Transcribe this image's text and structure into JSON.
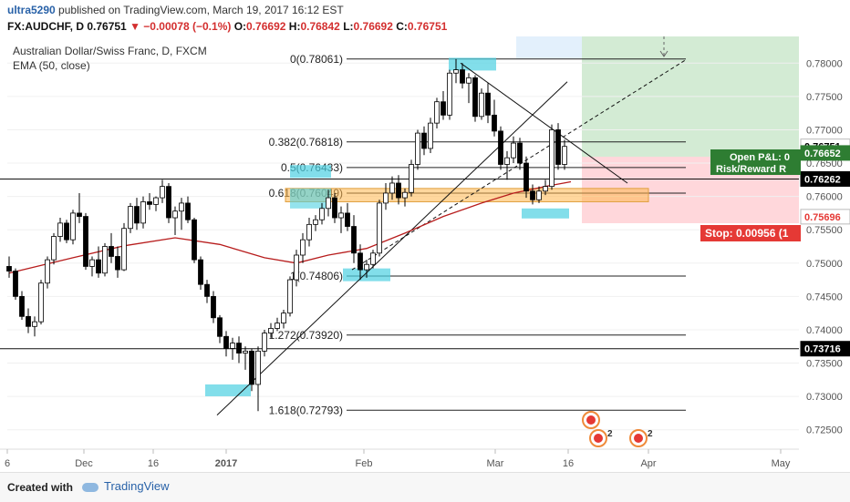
{
  "header": {
    "user": "ultra5290",
    "published_text": "published on TradingView.com, March 19, 2017 16:12 EST",
    "symbol": "FX:AUDCHF, D",
    "last": "0.76751",
    "change": "▼ −0.00078 (−0.1%)",
    "o_label": "O:",
    "o_value": "0.76692",
    "h_label": "H:",
    "h_value": "0.76842",
    "l_label": "L:",
    "l_value": "0.76692",
    "c_label": "C:",
    "c_value": "0.76751"
  },
  "footer": {
    "created": "Created with",
    "brand": "TradingView",
    "brand_icon": "tradingview-cloud-icon"
  },
  "colors": {
    "candle_up": "#ffffff",
    "candle_down": "#000000",
    "ema": "#b71c1c",
    "target_zone": "#c8e6c9",
    "stop_zone": "#ffcdd2",
    "highlight": "#4dd0e1",
    "zone": "#ffb74d",
    "axis_text": "#555555",
    "pnl_badge": "#2e7d32",
    "stop_badge": "#e53935"
  },
  "chart_data": {
    "type": "candlestick",
    "title": "Australian Dollar/Swiss Franc, D, FXCM",
    "indicator": "EMA (50, close)",
    "ylim": [
      0.7225,
      0.784
    ],
    "y_ticks": [
      "0.78000",
      "0.77500",
      "0.77000",
      "0.76500",
      "0.76000",
      "0.75500",
      "0.75000",
      "0.74500",
      "0.74000",
      "0.73500",
      "0.73000",
      "0.72500"
    ],
    "x_ticks": [
      "6",
      "Dec",
      "16",
      "2017",
      "Feb",
      "Mar",
      "16",
      "Apr",
      "May"
    ],
    "price_labels": [
      {
        "text": "0.76751",
        "value": 0.76751,
        "color": "#ffffff",
        "text_color": "#000000"
      },
      {
        "text": "0.76652",
        "value": 0.76652,
        "color": "#2e7d32",
        "text_color": "#ffffff"
      },
      {
        "text": "0.76262",
        "value": 0.76262,
        "color": "#000000",
        "text_color": "#ffffff"
      },
      {
        "text": "0.75696",
        "value": 0.75696,
        "color": "#ffffff",
        "text_color": "#e53935"
      },
      {
        "text": "0.73716",
        "value": 0.73716,
        "color": "#000000",
        "text_color": "#ffffff"
      }
    ],
    "fib_levels": [
      {
        "text": "0(0.78061)",
        "value": 0.78061
      },
      {
        "text": "0.382(0.76818)",
        "value": 0.76818
      },
      {
        "text": "0.5(0.76433)",
        "value": 0.76433
      },
      {
        "text": "0.618(0.76049)",
        "value": 0.76049
      },
      {
        "text": "1(0.74806)",
        "value": 0.74806
      },
      {
        "text": "1.272(0.73920)",
        "value": 0.7392
      },
      {
        "text": "1.618(0.72793)",
        "value": 0.72793
      }
    ],
    "horizontal_lines": [
      0.76262,
      0.73716
    ],
    "open_pnl_text": "Open P&L: 0",
    "risk_reward_text": "Risk/Reward R",
    "stop_text": "Stop: 0.00956 (1",
    "event_icons": [
      "event-flag-icon",
      "event-flag-icon",
      "event-flag-icon"
    ],
    "event_counts": [
      "2",
      "2"
    ],
    "candles": [
      [
        0.7495,
        0.751,
        0.7478,
        0.7488
      ],
      [
        0.7488,
        0.7492,
        0.7445,
        0.745
      ],
      [
        0.745,
        0.7458,
        0.7415,
        0.742
      ],
      [
        0.742,
        0.7432,
        0.7395,
        0.7405
      ],
      [
        0.7405,
        0.742,
        0.739,
        0.7412
      ],
      [
        0.7412,
        0.7475,
        0.7408,
        0.747
      ],
      [
        0.747,
        0.751,
        0.7462,
        0.7505
      ],
      [
        0.7505,
        0.7545,
        0.7498,
        0.754
      ],
      [
        0.754,
        0.7568,
        0.7532,
        0.756
      ],
      [
        0.756,
        0.7565,
        0.753,
        0.7535
      ],
      [
        0.7535,
        0.758,
        0.7528,
        0.7575
      ],
      [
        0.7575,
        0.7605,
        0.756,
        0.757
      ],
      [
        0.757,
        0.7575,
        0.749,
        0.7495
      ],
      [
        0.7495,
        0.751,
        0.748,
        0.7505
      ],
      [
        0.7505,
        0.7525,
        0.7478,
        0.7485
      ],
      [
        0.7485,
        0.753,
        0.748,
        0.7525
      ],
      [
        0.7525,
        0.7545,
        0.75,
        0.751
      ],
      [
        0.751,
        0.7525,
        0.7478,
        0.749
      ],
      [
        0.749,
        0.756,
        0.7488,
        0.7552
      ],
      [
        0.7552,
        0.759,
        0.7545,
        0.7585
      ],
      [
        0.7585,
        0.7598,
        0.755,
        0.756
      ],
      [
        0.756,
        0.76,
        0.7552,
        0.7592
      ],
      [
        0.7592,
        0.7605,
        0.758,
        0.7588
      ],
      [
        0.7588,
        0.76,
        0.7578,
        0.7598
      ],
      [
        0.7598,
        0.7625,
        0.759,
        0.7615
      ],
      [
        0.7615,
        0.762,
        0.756,
        0.7568
      ],
      [
        0.7568,
        0.7585,
        0.7542,
        0.7578
      ],
      [
        0.7578,
        0.7598,
        0.755,
        0.759
      ],
      [
        0.759,
        0.76,
        0.756,
        0.7565
      ],
      [
        0.7565,
        0.7568,
        0.75,
        0.7505
      ],
      [
        0.7505,
        0.751,
        0.746,
        0.7468
      ],
      [
        0.7468,
        0.7475,
        0.744,
        0.745
      ],
      [
        0.745,
        0.7458,
        0.741,
        0.7418
      ],
      [
        0.7418,
        0.7422,
        0.738,
        0.739
      ],
      [
        0.739,
        0.7398,
        0.736,
        0.7372
      ],
      [
        0.7372,
        0.7388,
        0.7355,
        0.738
      ],
      [
        0.738,
        0.739,
        0.735,
        0.7365
      ],
      [
        0.7365,
        0.7375,
        0.734,
        0.7368
      ],
      [
        0.7368,
        0.7372,
        0.7308,
        0.7318
      ],
      [
        0.7318,
        0.7375,
        0.7278,
        0.7368
      ],
      [
        0.7368,
        0.74,
        0.736,
        0.7395
      ],
      [
        0.7395,
        0.741,
        0.7388,
        0.7402
      ],
      [
        0.7402,
        0.7418,
        0.7398,
        0.741
      ],
      [
        0.741,
        0.743,
        0.7402,
        0.7425
      ],
      [
        0.7425,
        0.748,
        0.742,
        0.7475
      ],
      [
        0.7475,
        0.752,
        0.7465,
        0.7512
      ],
      [
        0.7512,
        0.7545,
        0.75,
        0.7535
      ],
      [
        0.7535,
        0.7568,
        0.7525,
        0.7558
      ],
      [
        0.7558,
        0.7572,
        0.7548,
        0.7565
      ],
      [
        0.7565,
        0.759,
        0.7558,
        0.7582
      ],
      [
        0.7582,
        0.761,
        0.757,
        0.7598
      ],
      [
        0.7598,
        0.7605,
        0.756,
        0.7568
      ],
      [
        0.7568,
        0.7585,
        0.7545,
        0.7575
      ],
      [
        0.7575,
        0.759,
        0.7548,
        0.7555
      ],
      [
        0.7555,
        0.7572,
        0.75,
        0.7515
      ],
      [
        0.7515,
        0.7528,
        0.7475,
        0.749
      ],
      [
        0.749,
        0.7505,
        0.7478,
        0.7498
      ],
      [
        0.7498,
        0.752,
        0.7492,
        0.7515
      ],
      [
        0.7515,
        0.7595,
        0.751,
        0.759
      ],
      [
        0.759,
        0.762,
        0.758,
        0.7605
      ],
      [
        0.7605,
        0.763,
        0.7595,
        0.762
      ],
      [
        0.762,
        0.7632,
        0.7588,
        0.7598
      ],
      [
        0.7598,
        0.7612,
        0.7585,
        0.7606
      ],
      [
        0.7606,
        0.7655,
        0.76,
        0.7648
      ],
      [
        0.7648,
        0.77,
        0.764,
        0.7695
      ],
      [
        0.7695,
        0.7705,
        0.7662,
        0.7672
      ],
      [
        0.7672,
        0.7718,
        0.7665,
        0.771
      ],
      [
        0.771,
        0.7748,
        0.7702,
        0.7742
      ],
      [
        0.7742,
        0.7758,
        0.7715,
        0.7722
      ],
      [
        0.7722,
        0.779,
        0.7715,
        0.7785
      ],
      [
        0.7785,
        0.7806,
        0.777,
        0.779
      ],
      [
        0.779,
        0.78,
        0.7762,
        0.777
      ],
      [
        0.777,
        0.7785,
        0.774,
        0.7778
      ],
      [
        0.7778,
        0.7782,
        0.7712,
        0.772
      ],
      [
        0.772,
        0.7762,
        0.7715,
        0.7755
      ],
      [
        0.7755,
        0.777,
        0.771,
        0.7722
      ],
      [
        0.7722,
        0.7745,
        0.769,
        0.7698
      ],
      [
        0.7698,
        0.7705,
        0.764,
        0.7648
      ],
      [
        0.7648,
        0.7668,
        0.7625,
        0.7658
      ],
      [
        0.7658,
        0.769,
        0.765,
        0.768
      ],
      [
        0.768,
        0.7688,
        0.764,
        0.765
      ],
      [
        0.765,
        0.766,
        0.7598,
        0.7608
      ],
      [
        0.7608,
        0.7618,
        0.7588,
        0.7595
      ],
      [
        0.7595,
        0.7615,
        0.759,
        0.7608
      ],
      [
        0.7608,
        0.7625,
        0.7602,
        0.7615
      ],
      [
        0.7615,
        0.7708,
        0.761,
        0.77
      ],
      [
        0.77,
        0.771,
        0.764,
        0.7648
      ],
      [
        0.7648,
        0.7685,
        0.764,
        0.7675
      ]
    ],
    "ema": [
      [
        0,
        0.7485
      ],
      [
        10,
        0.7508
      ],
      [
        18,
        0.7526
      ],
      [
        26,
        0.7538
      ],
      [
        33,
        0.7528
      ],
      [
        40,
        0.7508
      ],
      [
        45,
        0.75
      ],
      [
        50,
        0.7512
      ],
      [
        56,
        0.7522
      ],
      [
        62,
        0.7545
      ],
      [
        68,
        0.757
      ],
      [
        74,
        0.759
      ],
      [
        79,
        0.7605
      ],
      [
        84,
        0.7615
      ],
      [
        88,
        0.7622
      ]
    ]
  }
}
